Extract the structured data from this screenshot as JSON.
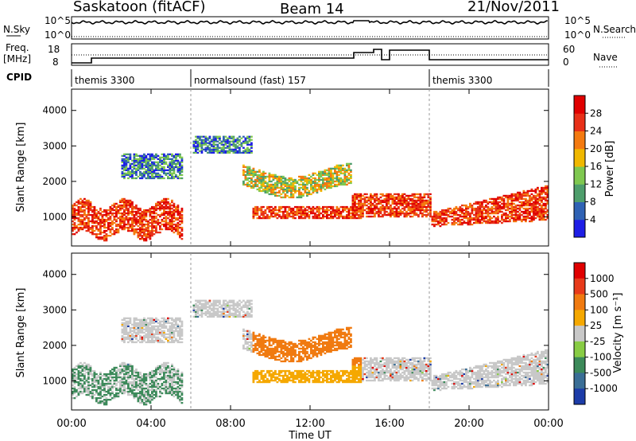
{
  "header": {
    "station": "Saskatoon (fitACF)",
    "beam": "Beam 14",
    "date": "21/Nov/2011"
  },
  "top_panels": {
    "nsky_label": "N.Sky",
    "nsky_ticks": [
      "10^5",
      "10^0"
    ],
    "nsearch_label": "N.Search",
    "nsearch_ticks": [
      "10^5",
      "10^0"
    ],
    "freq_label_1": "Freq.",
    "freq_label_2": "[MHz]",
    "freq_ticks": [
      "18",
      "8"
    ],
    "nave_label": "Nave",
    "nave_ticks": [
      "60",
      "0"
    ],
    "cpid_label": "CPID",
    "cpid_segments": [
      {
        "label": "themis 3300",
        "start": 0,
        "end": 6
      },
      {
        "label": "normalsound (fast) 157",
        "start": 6,
        "end": 18
      },
      {
        "label": "themis 3300",
        "start": 18,
        "end": 24
      }
    ]
  },
  "chart_data": [
    {
      "type": "heatmap",
      "panel": "power",
      "x_range_hours": [
        0,
        24
      ],
      "ylabel": "Slant Range [km]",
      "ylim": [
        180,
        4600
      ],
      "y_ticks": [
        "1000",
        "2000",
        "3000",
        "4000"
      ],
      "colorbar": {
        "label": "Power [dB]",
        "ticks": [
          "4",
          "8",
          "12",
          "16",
          "20",
          "24",
          "28"
        ],
        "colors": [
          "#1e1ee6",
          "#2f62b4",
          "#4e9e6c",
          "#7fc850",
          "#f0b800",
          "#f47a10",
          "#e83018",
          "#e00000"
        ]
      }
    },
    {
      "type": "heatmap",
      "panel": "velocity",
      "x_range_hours": [
        0,
        24
      ],
      "ylabel": "Slant Range [km]",
      "ylim": [
        180,
        4600
      ],
      "y_ticks": [
        "1000",
        "2000",
        "3000",
        "4000"
      ],
      "colorbar": {
        "label": "Velocity [m s⁻¹]",
        "ticks": [
          "1000",
          "500",
          "100",
          "25",
          "-25",
          "-100",
          "-500",
          "-1000"
        ],
        "colors": [
          "#1c3ca8",
          "#3a6e96",
          "#3c8a5a",
          "#88cc44",
          "#c8c8c8",
          "#f5a800",
          "#f07a10",
          "#e83a1a",
          "#e00000"
        ]
      }
    }
  ],
  "x_axis": {
    "ticks": [
      "00:00",
      "04:00",
      "08:00",
      "12:00",
      "16:00",
      "20:00",
      "00:00"
    ],
    "label": "Time UT"
  }
}
